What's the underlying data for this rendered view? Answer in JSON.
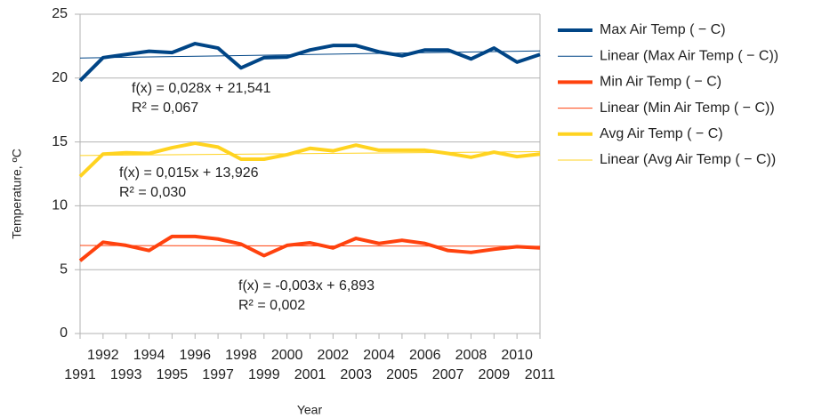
{
  "chart_data": {
    "type": "line",
    "y_label": "Temperature, ºC",
    "x_label": "Year",
    "x": [
      1991,
      1992,
      1993,
      1994,
      1995,
      1996,
      1997,
      1998,
      1999,
      2000,
      2001,
      2002,
      2003,
      2004,
      2005,
      2006,
      2007,
      2008,
      2009,
      2010,
      2011
    ],
    "xlim": [
      1991,
      2011
    ],
    "xticks": [
      1991,
      1992,
      1993,
      1994,
      1995,
      1996,
      1997,
      1998,
      1999,
      2000,
      2001,
      2002,
      2003,
      2004,
      2005,
      2006,
      2007,
      2008,
      2009,
      2010,
      2011
    ],
    "ylim": [
      0,
      25
    ],
    "yticks": [
      0,
      5,
      10,
      15,
      20,
      25
    ],
    "grid": true,
    "legend": "right",
    "series": [
      {
        "name": "Max Air Temp ( − C)",
        "color": "#004586",
        "values": [
          19.8,
          21.6,
          21.85,
          22.1,
          22.0,
          22.7,
          22.35,
          20.8,
          21.6,
          21.65,
          22.2,
          22.55,
          22.55,
          22.05,
          21.75,
          22.2,
          22.2,
          21.5,
          22.35,
          21.25,
          21.85
        ]
      },
      {
        "name": "Linear (Max Air Temp ( − C))",
        "color": "#004586",
        "trend": true,
        "x": [
          1991,
          2011
        ],
        "values": [
          21.57,
          22.13
        ]
      },
      {
        "name": "Min Air Temp ( − C)",
        "color": "#ff420e",
        "values": [
          5.7,
          7.15,
          6.9,
          6.5,
          7.6,
          7.6,
          7.4,
          7.0,
          6.1,
          6.9,
          7.1,
          6.7,
          7.45,
          7.05,
          7.3,
          7.05,
          6.5,
          6.35,
          6.6,
          6.8,
          6.7
        ]
      },
      {
        "name": "Linear (Min Air Temp ( − C))",
        "color": "#ff420e",
        "trend": true,
        "x": [
          1991,
          2011
        ],
        "values": [
          6.89,
          6.83
        ]
      },
      {
        "name": "Avg Air Temp ( − C)",
        "color": "#ffd320",
        "values": [
          12.3,
          14.05,
          14.15,
          14.1,
          14.55,
          14.9,
          14.6,
          13.65,
          13.65,
          14.0,
          14.5,
          14.3,
          14.75,
          14.35,
          14.35,
          14.35,
          14.1,
          13.8,
          14.2,
          13.85,
          14.05
        ]
      },
      {
        "name": "Linear (Avg Air Temp ( − C))",
        "color": "#ffd320",
        "trend": true,
        "x": [
          1991,
          2011
        ],
        "values": [
          13.94,
          14.24
        ]
      }
    ],
    "annotations": [
      {
        "equation": "f(x) = 0,028x + 21,541",
        "r2": "R² = 0,067"
      },
      {
        "equation": "f(x) = 0,015x + 13,926",
        "r2": "R² = 0,030"
      },
      {
        "equation": "f(x) = -0,003x + 6,893",
        "r2": "R² = 0,002"
      }
    ]
  }
}
